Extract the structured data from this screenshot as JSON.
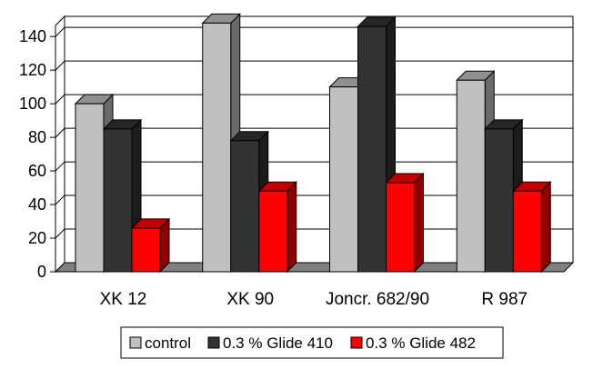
{
  "chart_data": {
    "type": "bar",
    "style": "3d-clustered",
    "categories": [
      "XK 12",
      "XK 90",
      "Joncr. 682/90",
      "R 987"
    ],
    "series": [
      {
        "name": "control",
        "values": [
          100,
          148,
          110,
          114
        ],
        "color": "#c0c0c0"
      },
      {
        "name": "0.3 % Glide 410",
        "values": [
          85,
          78,
          146,
          85
        ],
        "color": "#333333"
      },
      {
        "name": "0.3 % Glide 482",
        "values": [
          26,
          48,
          53,
          48
        ],
        "color": "#ff0000"
      }
    ],
    "yticks": [
      0,
      20,
      40,
      60,
      80,
      100,
      120,
      140
    ],
    "ylim": [
      0,
      152
    ],
    "grid": true,
    "legend_position": "bottom"
  }
}
